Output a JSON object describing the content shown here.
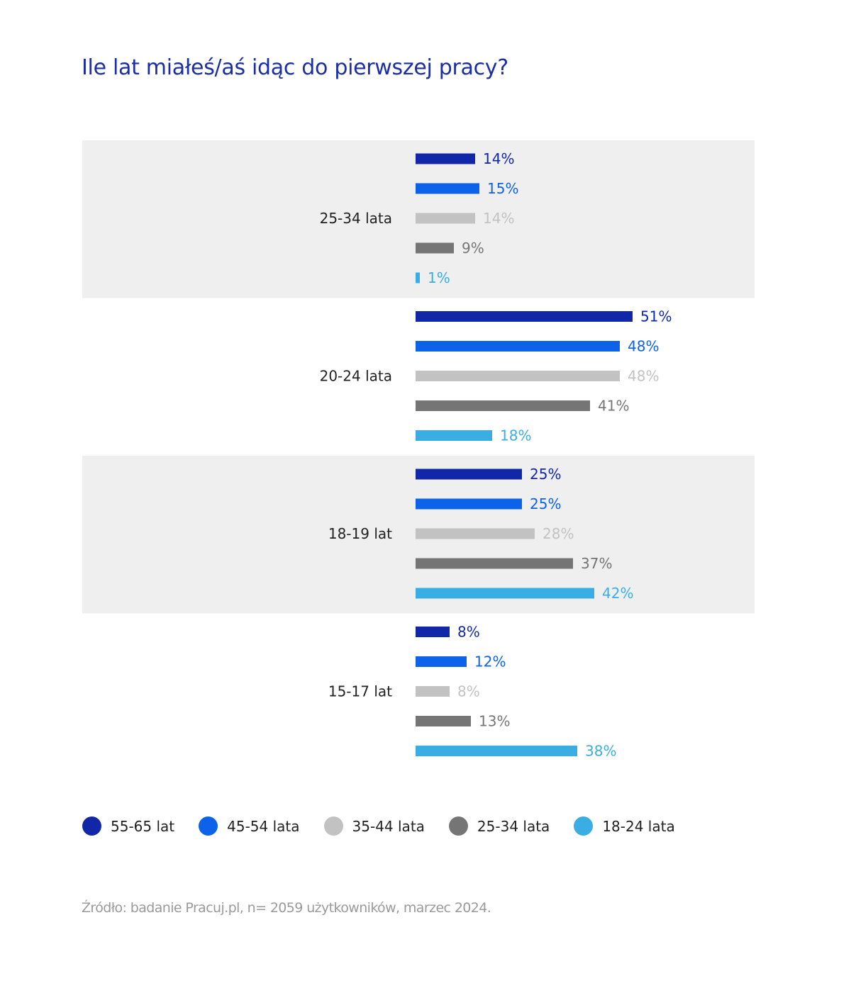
{
  "title": "Ile lat miałeś/aś idąc do pierwszej pracy?",
  "source": "Źródło: badanie Pracuj.pl, n= 2059 użytkowników, marzec 2024.",
  "chart_data": {
    "type": "bar",
    "orientation": "horizontal",
    "categories": [
      "25-34 lata",
      "20-24 lata",
      "18-19 lat",
      "15-17 lat"
    ],
    "series": [
      {
        "name": "55-65 lat",
        "color": "#1227a8",
        "values": [
          14,
          51,
          25,
          8
        ]
      },
      {
        "name": "45-54 lata",
        "color": "#0c62e8",
        "values": [
          15,
          48,
          25,
          12
        ]
      },
      {
        "name": "35-44 lata",
        "color": "#c2c2c2",
        "values": [
          14,
          48,
          28,
          8
        ]
      },
      {
        "name": "25-34 lata",
        "color": "#757575",
        "values": [
          9,
          41,
          37,
          13
        ]
      },
      {
        "name": "18-24 lata",
        "color": "#3aaee2",
        "values": [
          1,
          18,
          42,
          38
        ]
      }
    ],
    "value_suffix": "%",
    "band_colors": [
      "#efefef",
      "#ffffff"
    ],
    "grid": false,
    "legend_position": "bottom-left"
  }
}
